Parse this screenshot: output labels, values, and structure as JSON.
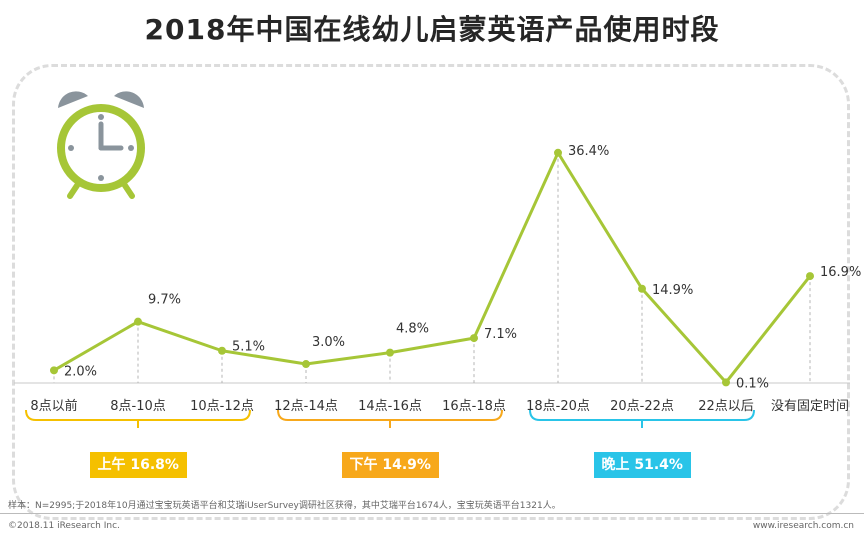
{
  "title": "2018年中国在线幼儿启蒙英语产品使用时段",
  "chart_data": {
    "type": "line",
    "title": "2018年中国在线幼儿启蒙英语产品使用时段",
    "categories": [
      "8点以前",
      "8点-10点",
      "10点-12点",
      "12点-14点",
      "14点-16点",
      "16点-18点",
      "18点-20点",
      "20点-22点",
      "22点以后",
      "没有固定时间"
    ],
    "values": [
      2.0,
      9.7,
      5.1,
      3.0,
      4.8,
      7.1,
      36.4,
      14.9,
      0.1,
      16.9
    ],
    "data_labels": [
      "2.0%",
      "9.7%",
      "5.1%",
      "3.0%",
      "4.8%",
      "7.1%",
      "36.4%",
      "14.9%",
      "0.1%",
      "16.9%"
    ],
    "unit": "%",
    "ylim": [
      0,
      40
    ],
    "grid": false,
    "xlabel": "",
    "ylabel": "",
    "line_color": "#a6c637"
  },
  "periods": [
    {
      "label": "上午 16.8%",
      "color": "#f5c000",
      "from": 0,
      "to": 2
    },
    {
      "label": "下午 14.9%",
      "color": "#f7a81b",
      "from": 3,
      "to": 5
    },
    {
      "label": "晚上 51.4%",
      "color": "#29c4e8",
      "from": 6,
      "to": 8
    }
  ],
  "footer": {
    "note": "样本：N=2995;于2018年10月通过宝宝玩英语平台和艾瑞iUserSurvey调研社区获得，其中艾瑞平台1674人，宝宝玩英语平台1321人。",
    "copyright": "©2018.11 iResearch Inc.",
    "website": "www.iresearch.com.cn"
  },
  "colors": {
    "clock_green": "#a6c637",
    "clock_grey": "#8a949c",
    "axis": "#c8c8c8"
  }
}
